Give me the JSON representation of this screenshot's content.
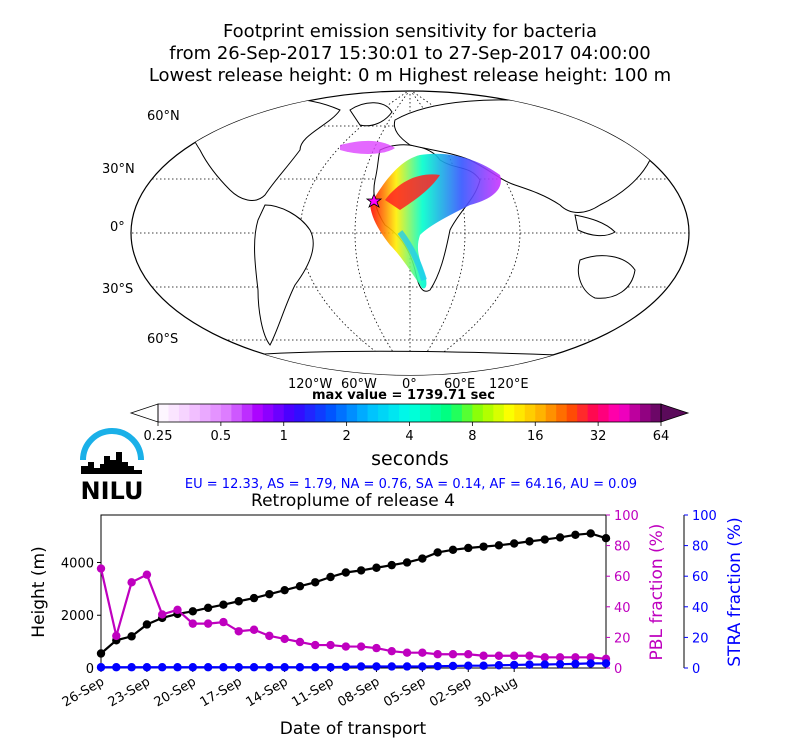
{
  "titles": {
    "line1": "Footprint emission sensitivity for bacteria",
    "line2": "from 26-Sep-2017 15:30:01 to 27-Sep-2017 04:00:00",
    "line3": "Lowest release height: 0 m       Highest release height: 100 m"
  },
  "map": {
    "lat_labels": [
      "60°N",
      "30°N",
      "0°",
      "30°S",
      "60°S"
    ],
    "lon_labels": [
      "120°W",
      "60°W",
      "0°",
      "60°E",
      "120°E"
    ],
    "max_value_label": "max value = 1739.71 sec"
  },
  "colorbar": {
    "tick_labels": [
      "0.25",
      "0.5",
      "1",
      "2",
      "4",
      "8",
      "16",
      "32",
      "64"
    ],
    "unit_label": "seconds"
  },
  "logo": {
    "text": "NILU",
    "arc_color": "#1ab0e8"
  },
  "fractions_text": "EU = 12.33,  AS = 1.79,  NA = 0.76,  SA = 0.14,  AF = 64.16,  AU = 0.09",
  "colors": {
    "height": "#000000",
    "pbl": "#bf00bf",
    "stra": "#0000ff",
    "fractions_text": "#0000ff"
  },
  "chart_data": {
    "type": "line",
    "title": "Retroplume of release 4",
    "xlabel": "Date of transport",
    "ylabel": "Height (m)",
    "y2label": "PBL fraction (%)",
    "y3label": "STRA fraction (%)",
    "x_tick_labels": [
      "26-Sep",
      "23-Sep",
      "20-Sep",
      "17-Sep",
      "14-Sep",
      "11-Sep",
      "08-Sep",
      "05-Sep",
      "02-Sep",
      "30-Aug"
    ],
    "y_tick_labels": [
      "0",
      "2000",
      "4000"
    ],
    "y2_tick_labels": [
      "0",
      "20",
      "40",
      "60",
      "80",
      "100"
    ],
    "y3_tick_labels": [
      "0",
      "20",
      "40",
      "60",
      "80",
      "100"
    ],
    "ylim": [
      0,
      5800
    ],
    "y2lim": [
      0,
      100
    ],
    "y3lim": [
      0,
      100
    ],
    "x_days_back": [
      0,
      1,
      2,
      3,
      4,
      5,
      6,
      7,
      8,
      9,
      10,
      11,
      12,
      13,
      14,
      15,
      16,
      17,
      18,
      19,
      20,
      21,
      22,
      23,
      24,
      25,
      26,
      27,
      28,
      29,
      30,
      31,
      32,
      33
    ],
    "series": [
      {
        "name": "Height (m)",
        "axis": "left",
        "values": [
          550,
          1050,
          1200,
          1650,
          1900,
          2050,
          2150,
          2280,
          2400,
          2530,
          2650,
          2800,
          2950,
          3100,
          3250,
          3450,
          3620,
          3700,
          3800,
          3900,
          4000,
          4150,
          4380,
          4480,
          4550,
          4600,
          4650,
          4720,
          4800,
          4870,
          4950,
          5050,
          5100,
          4920
        ]
      },
      {
        "name": "PBL fraction (%)",
        "axis": "right",
        "values": [
          65,
          21,
          56,
          61,
          35,
          38,
          29,
          29,
          30,
          24,
          25,
          21,
          19,
          17,
          15,
          15,
          14,
          14,
          13,
          11,
          10,
          10,
          9,
          9,
          9,
          8,
          8,
          8,
          8,
          7,
          7,
          7,
          7,
          6
        ]
      },
      {
        "name": "STRA fraction (%)",
        "axis": "right2",
        "values": [
          0.5,
          0.5,
          0.5,
          0.5,
          0.5,
          0.5,
          0.5,
          0.5,
          0.5,
          0.5,
          0.5,
          0.5,
          0.5,
          0.5,
          0.5,
          0.5,
          0.8,
          1,
          1,
          1,
          1,
          1,
          1.2,
          1.3,
          1.5,
          1.5,
          1.8,
          2,
          2.2,
          2.3,
          2.5,
          2.7,
          3,
          3
        ]
      }
    ]
  }
}
